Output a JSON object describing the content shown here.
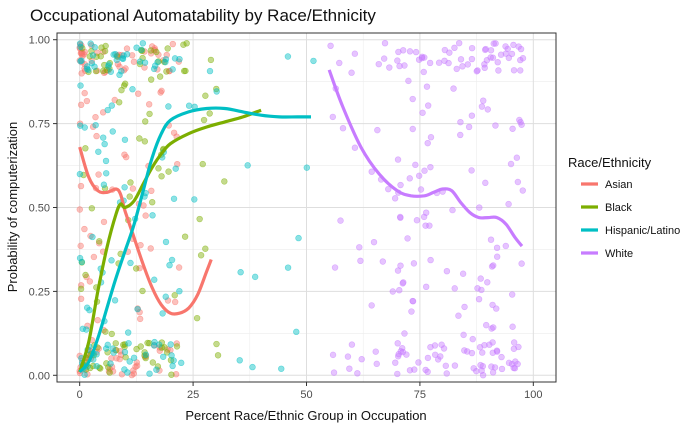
{
  "chart_data": {
    "type": "scatter",
    "title": "Occupational Automatability by Race/Ethnicity",
    "xlabel": "Percent Race/Ethnic Group in Occupation",
    "ylabel": "Probability of computerization",
    "xlim": [
      -5,
      105
    ],
    "ylim": [
      -0.02,
      1.02
    ],
    "x_ticks": [
      0,
      25,
      50,
      75,
      100
    ],
    "x_tick_labels": [
      "0",
      "25",
      "50",
      "75",
      "100"
    ],
    "y_ticks": [
      0,
      0.25,
      0.5,
      0.75,
      1.0
    ],
    "y_tick_labels": [
      "0.00",
      "0.25",
      "0.50",
      "0.75",
      "1.00"
    ],
    "grid": true,
    "legend": {
      "title": "Race/Ethnicity",
      "position": "right"
    },
    "series": [
      {
        "name": "Asian",
        "color": "#F8766D",
        "x_range": [
          0,
          29
        ],
        "smooth": [
          [
            0,
            0.68
          ],
          [
            2,
            0.59
          ],
          [
            4,
            0.55
          ],
          [
            6,
            0.545
          ],
          [
            8,
            0.555
          ],
          [
            9,
            0.54
          ],
          [
            10,
            0.49
          ],
          [
            12,
            0.41
          ],
          [
            14,
            0.33
          ],
          [
            16,
            0.26
          ],
          [
            18,
            0.21
          ],
          [
            20,
            0.185
          ],
          [
            22,
            0.185
          ],
          [
            24,
            0.2
          ],
          [
            26,
            0.24
          ],
          [
            28,
            0.31
          ],
          [
            29,
            0.345
          ]
        ]
      },
      {
        "name": "Black",
        "color": "#7CAE00",
        "x_range": [
          0,
          40
        ],
        "smooth": [
          [
            0,
            0.01
          ],
          [
            2,
            0.1
          ],
          [
            4,
            0.25
          ],
          [
            6,
            0.38
          ],
          [
            8,
            0.48
          ],
          [
            9,
            0.51
          ],
          [
            10,
            0.5
          ],
          [
            12,
            0.52
          ],
          [
            14,
            0.57
          ],
          [
            16,
            0.62
          ],
          [
            18,
            0.66
          ],
          [
            20,
            0.69
          ],
          [
            24,
            0.72
          ],
          [
            28,
            0.74
          ],
          [
            32,
            0.755
          ],
          [
            36,
            0.77
          ],
          [
            40,
            0.79
          ]
        ]
      },
      {
        "name": "Hispanic/Latino",
        "color": "#00BFC4",
        "x_range": [
          0,
          52
        ],
        "smooth": [
          [
            0,
            0.01
          ],
          [
            2,
            0.04
          ],
          [
            4,
            0.11
          ],
          [
            6,
            0.2
          ],
          [
            8,
            0.29
          ],
          [
            10,
            0.37
          ],
          [
            12,
            0.45
          ],
          [
            14,
            0.55
          ],
          [
            16,
            0.65
          ],
          [
            18,
            0.72
          ],
          [
            20,
            0.76
          ],
          [
            24,
            0.785
          ],
          [
            28,
            0.795
          ],
          [
            32,
            0.795
          ],
          [
            36,
            0.785
          ],
          [
            40,
            0.775
          ],
          [
            44,
            0.77
          ],
          [
            48,
            0.77
          ],
          [
            51,
            0.77
          ]
        ]
      },
      {
        "name": "White",
        "color": "#C77CFF",
        "x_range": [
          55,
          98
        ],
        "smooth": [
          [
            55,
            0.91
          ],
          [
            58,
            0.8
          ],
          [
            62,
            0.68
          ],
          [
            66,
            0.6
          ],
          [
            70,
            0.55
          ],
          [
            73,
            0.535
          ],
          [
            76,
            0.535
          ],
          [
            78,
            0.545
          ],
          [
            80,
            0.555
          ],
          [
            82,
            0.55
          ],
          [
            84,
            0.515
          ],
          [
            86,
            0.485
          ],
          [
            88,
            0.47
          ],
          [
            90,
            0.47
          ],
          [
            92,
            0.47
          ],
          [
            94,
            0.45
          ],
          [
            96,
            0.41
          ],
          [
            97.5,
            0.385
          ]
        ]
      }
    ]
  }
}
